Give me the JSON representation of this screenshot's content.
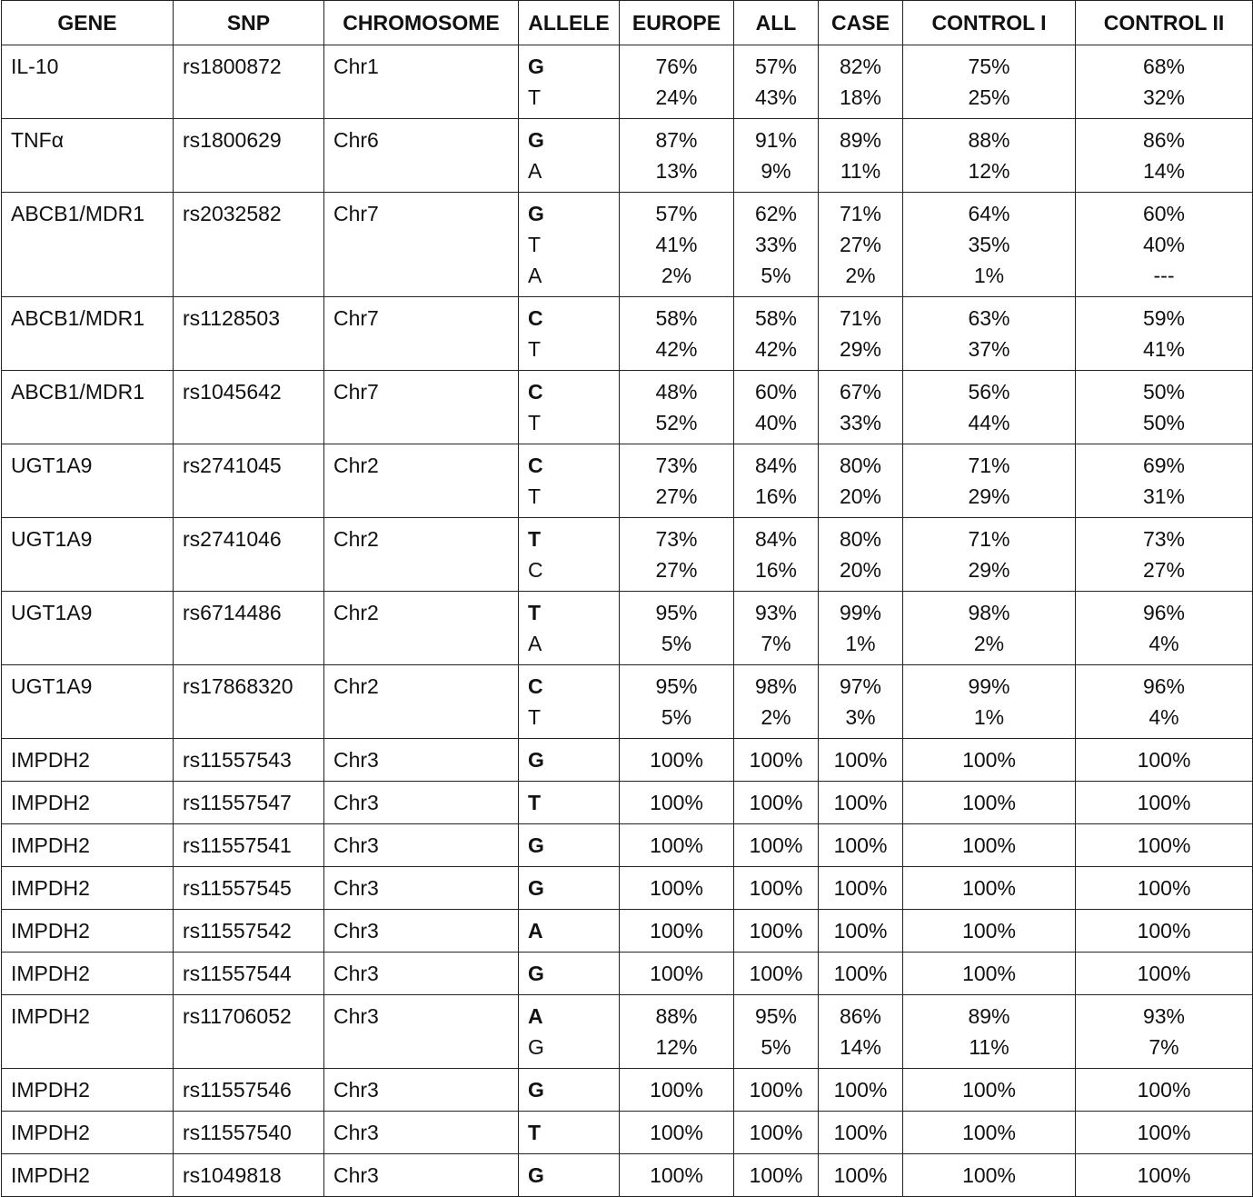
{
  "table": {
    "header": [
      "GENE",
      "SNP",
      "CHROMOSOME",
      "ALLELE",
      "EUROPE",
      "ALL",
      "CASE",
      "CONTROL I",
      "CONTROL II"
    ],
    "rows": [
      {
        "gene": "IL-10",
        "snp": "rs1800872",
        "chromosome": "Chr1",
        "alleles": [
          {
            "allele": "G",
            "freqs": [
              "76%",
              "57%",
              "82%",
              "75%",
              "68%"
            ]
          },
          {
            "allele": "T",
            "freqs": [
              "24%",
              "43%",
              "18%",
              "25%",
              "32%"
            ]
          }
        ]
      },
      {
        "gene": "TNFα",
        "snp": "rs1800629",
        "chromosome": "Chr6",
        "alleles": [
          {
            "allele": "G",
            "freqs": [
              "87%",
              "91%",
              "89%",
              "88%",
              "86%"
            ]
          },
          {
            "allele": "A",
            "freqs": [
              "13%",
              "9%",
              "11%",
              "12%",
              "14%"
            ]
          }
        ]
      },
      {
        "gene": "ABCB1/MDR1",
        "snp": "rs2032582",
        "chromosome": "Chr7",
        "alleles": [
          {
            "allele": "G",
            "freqs": [
              "57%",
              "62%",
              "71%",
              "64%",
              "60%"
            ]
          },
          {
            "allele": "T",
            "freqs": [
              "41%",
              "33%",
              "27%",
              "35%",
              "40%"
            ]
          },
          {
            "allele": "A",
            "freqs": [
              "2%",
              "5%",
              "2%",
              "1%",
              "---"
            ]
          }
        ]
      },
      {
        "gene": "ABCB1/MDR1",
        "snp": "rs1128503",
        "chromosome": "Chr7",
        "alleles": [
          {
            "allele": "C",
            "freqs": [
              "58%",
              "58%",
              "71%",
              "63%",
              "59%"
            ]
          },
          {
            "allele": "T",
            "freqs": [
              "42%",
              "42%",
              "29%",
              "37%",
              "41%"
            ]
          }
        ]
      },
      {
        "gene": "ABCB1/MDR1",
        "snp": "rs1045642",
        "chromosome": "Chr7",
        "alleles": [
          {
            "allele": "C",
            "freqs": [
              "48%",
              "60%",
              "67%",
              "56%",
              "50%"
            ]
          },
          {
            "allele": "T",
            "freqs": [
              "52%",
              "40%",
              "33%",
              "44%",
              "50%"
            ]
          }
        ]
      },
      {
        "gene": "UGT1A9",
        "snp": "rs2741045",
        "chromosome": "Chr2",
        "alleles": [
          {
            "allele": "C",
            "freqs": [
              "73%",
              "84%",
              "80%",
              "71%",
              "69%"
            ]
          },
          {
            "allele": "T",
            "freqs": [
              "27%",
              "16%",
              "20%",
              "29%",
              "31%"
            ]
          }
        ]
      },
      {
        "gene": "UGT1A9",
        "snp": "rs2741046",
        "chromosome": "Chr2",
        "alleles": [
          {
            "allele": "T",
            "freqs": [
              "73%",
              "84%",
              "80%",
              "71%",
              "73%"
            ]
          },
          {
            "allele": "C",
            "freqs": [
              "27%",
              "16%",
              "20%",
              "29%",
              "27%"
            ]
          }
        ]
      },
      {
        "gene": "UGT1A9",
        "snp": "rs6714486",
        "chromosome": "Chr2",
        "alleles": [
          {
            "allele": "T",
            "freqs": [
              "95%",
              "93%",
              "99%",
              "98%",
              "96%"
            ]
          },
          {
            "allele": "A",
            "freqs": [
              "5%",
              "7%",
              "1%",
              "2%",
              "4%"
            ]
          }
        ]
      },
      {
        "gene": "UGT1A9",
        "snp": "rs17868320",
        "chromosome": "Chr2",
        "alleles": [
          {
            "allele": "C",
            "freqs": [
              "95%",
              "98%",
              "97%",
              "99%",
              "96%"
            ]
          },
          {
            "allele": "T",
            "freqs": [
              "5%",
              "2%",
              "3%",
              "1%",
              "4%"
            ]
          }
        ]
      },
      {
        "gene": "IMPDH2",
        "snp": "rs11557543",
        "chromosome": "Chr3",
        "alleles": [
          {
            "allele": "G",
            "freqs": [
              "100%",
              "100%",
              "100%",
              "100%",
              "100%"
            ]
          }
        ]
      },
      {
        "gene": "IMPDH2",
        "snp": "rs11557547",
        "chromosome": "Chr3",
        "alleles": [
          {
            "allele": "T",
            "freqs": [
              "100%",
              "100%",
              "100%",
              "100%",
              "100%"
            ]
          }
        ]
      },
      {
        "gene": "IMPDH2",
        "snp": "rs11557541",
        "chromosome": "Chr3",
        "alleles": [
          {
            "allele": "G",
            "freqs": [
              "100%",
              "100%",
              "100%",
              "100%",
              "100%"
            ]
          }
        ]
      },
      {
        "gene": "IMPDH2",
        "snp": "rs11557545",
        "chromosome": "Chr3",
        "alleles": [
          {
            "allele": "G",
            "freqs": [
              "100%",
              "100%",
              "100%",
              "100%",
              "100%"
            ]
          }
        ]
      },
      {
        "gene": "IMPDH2",
        "snp": "rs11557542",
        "chromosome": "Chr3",
        "alleles": [
          {
            "allele": "A",
            "freqs": [
              "100%",
              "100%",
              "100%",
              "100%",
              "100%"
            ]
          }
        ]
      },
      {
        "gene": "IMPDH2",
        "snp": "rs11557544",
        "chromosome": "Chr3",
        "alleles": [
          {
            "allele": "G",
            "freqs": [
              "100%",
              "100%",
              "100%",
              "100%",
              "100%"
            ]
          }
        ]
      },
      {
        "gene": "IMPDH2",
        "snp": "rs11706052",
        "chromosome": "Chr3",
        "alleles": [
          {
            "allele": "A",
            "freqs": [
              "88%",
              "95%",
              "86%",
              "89%",
              "93%"
            ]
          },
          {
            "allele": "G",
            "freqs": [
              "12%",
              "5%",
              "14%",
              "11%",
              "7%"
            ]
          }
        ]
      },
      {
        "gene": "IMPDH2",
        "snp": "rs11557546",
        "chromosome": "Chr3",
        "alleles": [
          {
            "allele": "G",
            "freqs": [
              "100%",
              "100%",
              "100%",
              "100%",
              "100%"
            ]
          }
        ]
      },
      {
        "gene": "IMPDH2",
        "snp": "rs11557540",
        "chromosome": "Chr3",
        "alleles": [
          {
            "allele": "T",
            "freqs": [
              "100%",
              "100%",
              "100%",
              "100%",
              "100%"
            ]
          }
        ]
      },
      {
        "gene": "IMPDH2",
        "snp": "rs1049818",
        "chromosome": "Chr3",
        "alleles": [
          {
            "allele": "G",
            "freqs": [
              "100%",
              "100%",
              "100%",
              "100%",
              "100%"
            ]
          }
        ]
      }
    ]
  }
}
